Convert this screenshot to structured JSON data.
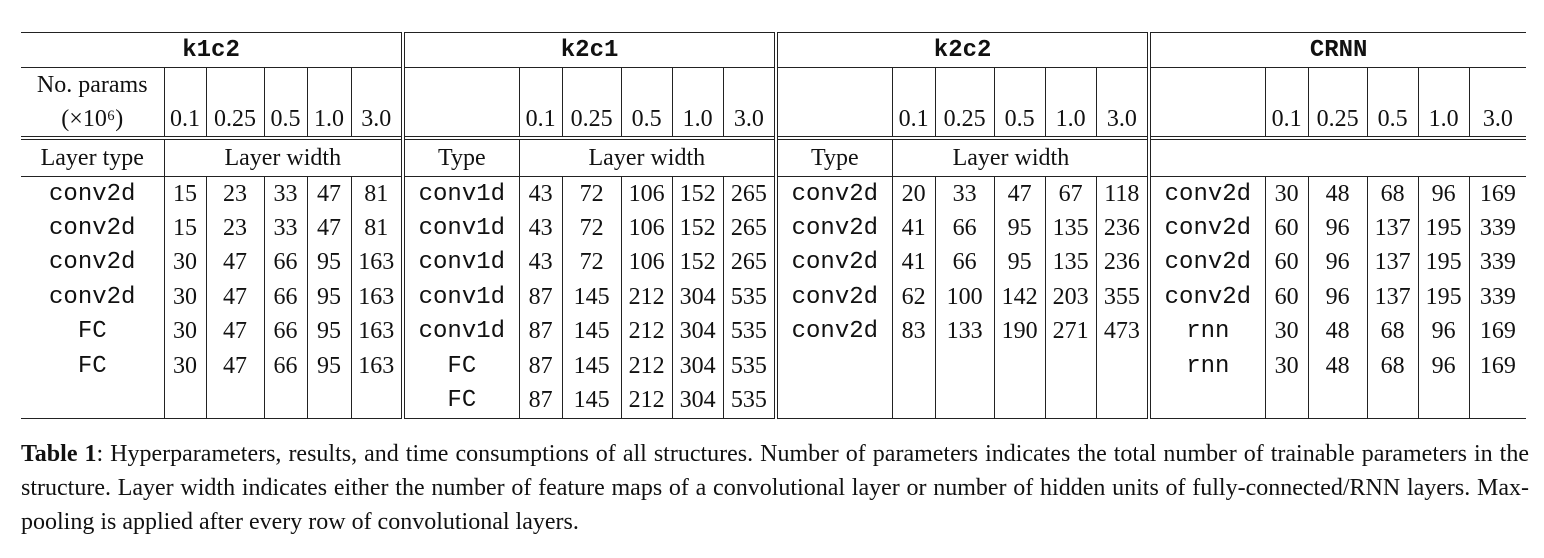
{
  "table": {
    "groups": [
      "k1c2",
      "k2c1",
      "k2c2",
      "CRNN"
    ],
    "params_label_line1": "No. params",
    "params_label_line2": "(×10⁶)",
    "params": [
      "0.1",
      "0.25",
      "0.5",
      "1.0",
      "3.0"
    ],
    "layer_type_label": "Layer type",
    "type_label": "Type",
    "layer_width_label": "Layer width",
    "rows": [
      {
        "k1c2": {
          "type": "conv2d",
          "w": [
            "15",
            "23",
            "33",
            "47",
            "81"
          ]
        },
        "k2c1": {
          "type": "conv1d",
          "w": [
            "43",
            "72",
            "106",
            "152",
            "265"
          ]
        },
        "k2c2": {
          "type": "conv2d",
          "w": [
            "20",
            "33",
            "47",
            "67",
            "118"
          ]
        },
        "crnn": {
          "type": "conv2d",
          "w": [
            "30",
            "48",
            "68",
            "96",
            "169"
          ]
        }
      },
      {
        "k1c2": {
          "type": "conv2d",
          "w": [
            "15",
            "23",
            "33",
            "47",
            "81"
          ]
        },
        "k2c1": {
          "type": "conv1d",
          "w": [
            "43",
            "72",
            "106",
            "152",
            "265"
          ]
        },
        "k2c2": {
          "type": "conv2d",
          "w": [
            "41",
            "66",
            "95",
            "135",
            "236"
          ]
        },
        "crnn": {
          "type": "conv2d",
          "w": [
            "60",
            "96",
            "137",
            "195",
            "339"
          ]
        }
      },
      {
        "k1c2": {
          "type": "conv2d",
          "w": [
            "30",
            "47",
            "66",
            "95",
            "163"
          ]
        },
        "k2c1": {
          "type": "conv1d",
          "w": [
            "43",
            "72",
            "106",
            "152",
            "265"
          ]
        },
        "k2c2": {
          "type": "conv2d",
          "w": [
            "41",
            "66",
            "95",
            "135",
            "236"
          ]
        },
        "crnn": {
          "type": "conv2d",
          "w": [
            "60",
            "96",
            "137",
            "195",
            "339"
          ]
        }
      },
      {
        "k1c2": {
          "type": "conv2d",
          "w": [
            "30",
            "47",
            "66",
            "95",
            "163"
          ]
        },
        "k2c1": {
          "type": "conv1d",
          "w": [
            "87",
            "145",
            "212",
            "304",
            "535"
          ]
        },
        "k2c2": {
          "type": "conv2d",
          "w": [
            "62",
            "100",
            "142",
            "203",
            "355"
          ]
        },
        "crnn": {
          "type": "conv2d",
          "w": [
            "60",
            "96",
            "137",
            "195",
            "339"
          ]
        }
      },
      {
        "k1c2": {
          "type": "FC",
          "w": [
            "30",
            "47",
            "66",
            "95",
            "163"
          ]
        },
        "k2c1": {
          "type": "conv1d",
          "w": [
            "87",
            "145",
            "212",
            "304",
            "535"
          ]
        },
        "k2c2": {
          "type": "conv2d",
          "w": [
            "83",
            "133",
            "190",
            "271",
            "473"
          ]
        },
        "crnn": {
          "type": "rnn",
          "w": [
            "30",
            "48",
            "68",
            "96",
            "169"
          ]
        }
      },
      {
        "k1c2": {
          "type": "FC",
          "w": [
            "30",
            "47",
            "66",
            "95",
            "163"
          ]
        },
        "k2c1": {
          "type": "FC",
          "w": [
            "87",
            "145",
            "212",
            "304",
            "535"
          ]
        },
        "k2c2": {
          "type": "",
          "w": [
            "",
            "",
            "",
            "",
            ""
          ]
        },
        "crnn": {
          "type": "rnn",
          "w": [
            "30",
            "48",
            "68",
            "96",
            "169"
          ]
        }
      },
      {
        "k1c2": {
          "type": "",
          "w": [
            "",
            "",
            "",
            "",
            ""
          ]
        },
        "k2c1": {
          "type": "FC",
          "w": [
            "87",
            "145",
            "212",
            "304",
            "535"
          ]
        },
        "k2c2": {
          "type": "",
          "w": [
            "",
            "",
            "",
            "",
            ""
          ]
        },
        "crnn": {
          "type": "",
          "w": [
            "",
            "",
            "",
            "",
            ""
          ]
        }
      }
    ]
  },
  "caption": {
    "label": "Table 1",
    "text": ": Hyperparameters, results, and time consumptions of all structures. Number of parameters indicates the total number of trainable parameters in the structure. Layer width indicates either the number of feature maps of a convolutional layer or number of hidden units of fully-connected/RNN layers. Max-pooling is applied after every row of convolutional layers."
  }
}
